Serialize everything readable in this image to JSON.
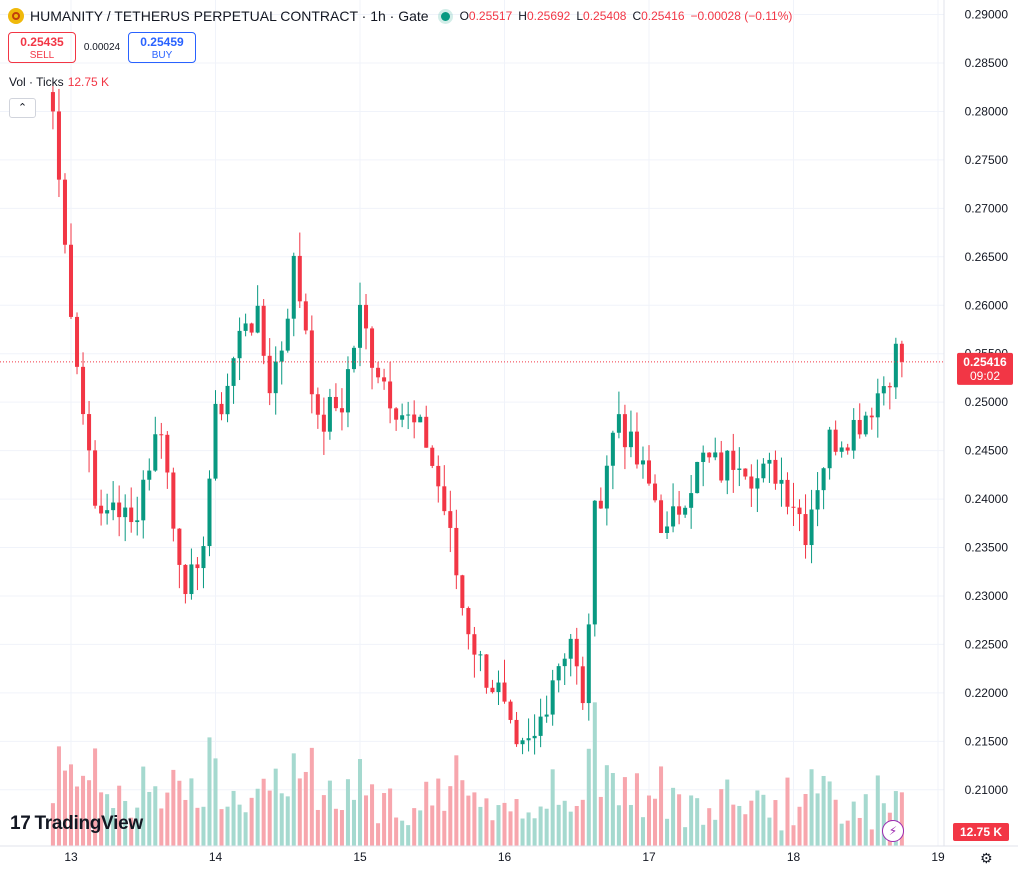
{
  "header": {
    "symbol_title": "HUMANITY / TETHERUS PERPETUAL CONTRACT · 1h · Gate",
    "o_label": "O",
    "o_value": "0.25517",
    "h_label": "H",
    "h_value": "0.25692",
    "l_label": "L",
    "l_value": "0.25408",
    "c_label": "C",
    "c_value": "0.25416",
    "change": "−0.00028 (−0.11%)"
  },
  "trade": {
    "sell_price": "0.25435",
    "sell_label": "SELL",
    "spread": "0.00024",
    "buy_price": "0.25459",
    "buy_label": "BUY"
  },
  "volume_legend": {
    "label": "Vol · Ticks",
    "value": "12.75 K"
  },
  "branding": {
    "logo_text": "TradingView"
  },
  "colors": {
    "up": "#089981",
    "down": "#f23645",
    "up_vol": "#a5d9cf",
    "down_vol": "#f7a6ad",
    "grid": "#f0f3fa"
  },
  "icons": {
    "collapse": "chevron-up-icon",
    "logo": "tradingview-logo-icon",
    "alert": "lightning-icon",
    "settings": "gear-icon"
  },
  "chart_data": {
    "type": "candlestick",
    "timeframe": "1h",
    "y_ticks": [
      "0.29000",
      "0.28500",
      "0.28000",
      "0.27500",
      "0.27000",
      "0.26500",
      "0.26000",
      "0.25500",
      "0.25000",
      "0.24500",
      "0.24000",
      "0.23500",
      "0.23000",
      "0.22500",
      "0.22000",
      "0.21500",
      "0.21000"
    ],
    "x_ticks": [
      "13",
      "14",
      "15",
      "16",
      "17",
      "18",
      "19"
    ],
    "ylim": [
      0.2042,
      0.2915
    ],
    "last_price": {
      "value": "0.25416",
      "countdown": "09:02"
    },
    "volume_last": "12.75 K",
    "anchors": [
      [
        "12 21:00",
        0.28
      ],
      [
        "12 23:00",
        0.266
      ],
      [
        "13 02:00",
        0.249
      ],
      [
        "13 05:00",
        0.237
      ],
      [
        "13 07:00",
        0.24
      ],
      [
        "13 10:00",
        0.237
      ],
      [
        "13 12:00",
        0.242
      ],
      [
        "13 15:00",
        0.248
      ],
      [
        "13 17:00",
        0.237
      ],
      [
        "13 19:00",
        0.232
      ],
      [
        "13 21:00",
        0.231
      ],
      [
        "14 00:00",
        0.248
      ],
      [
        "14 02:00",
        0.252
      ],
      [
        "14 05:00",
        0.259
      ],
      [
        "14 07:00",
        0.258
      ],
      [
        "14 09:00",
        0.252
      ],
      [
        "14 11:00",
        0.256
      ],
      [
        "14 13:00",
        0.264
      ],
      [
        "14 15:00",
        0.258
      ],
      [
        "14 17:00",
        0.247
      ],
      [
        "14 19:00",
        0.249
      ],
      [
        "14 21:00",
        0.25
      ],
      [
        "15 00:00",
        0.259
      ],
      [
        "15 02:00",
        0.255
      ],
      [
        "15 05:00",
        0.251
      ],
      [
        "15 08:00",
        0.248
      ],
      [
        "15 11:00",
        0.246
      ],
      [
        "15 14:00",
        0.239
      ],
      [
        "15 17:00",
        0.229
      ],
      [
        "15 20:00",
        0.223
      ],
      [
        "15 23:00",
        0.22
      ],
      [
        "16 02:00",
        0.213
      ],
      [
        "16 05:00",
        0.215
      ],
      [
        "16 08:00",
        0.222
      ],
      [
        "16 11:00",
        0.226
      ],
      [
        "16 13:00",
        0.218
      ],
      [
        "16 15:00",
        0.238
      ],
      [
        "16 17:00",
        0.244
      ],
      [
        "16 19:00",
        0.249
      ],
      [
        "16 21:00",
        0.245
      ],
      [
        "17 01:00",
        0.24
      ],
      [
        "17 03:00",
        0.236
      ],
      [
        "17 06:00",
        0.241
      ],
      [
        "17 09:00",
        0.244
      ],
      [
        "17 12:00",
        0.243
      ],
      [
        "17 15:00",
        0.245
      ],
      [
        "17 18:00",
        0.242
      ],
      [
        "17 21:00",
        0.243
      ],
      [
        "18 00:00",
        0.24
      ],
      [
        "18 02:00",
        0.237
      ],
      [
        "18 04:00",
        0.242
      ],
      [
        "18 06:00",
        0.246
      ],
      [
        "18 09:00",
        0.247
      ],
      [
        "18 12:00",
        0.249
      ],
      [
        "18 15:00",
        0.252
      ],
      [
        "18 17:00",
        0.255
      ],
      [
        "18 18:00",
        0.25416
      ]
    ]
  }
}
